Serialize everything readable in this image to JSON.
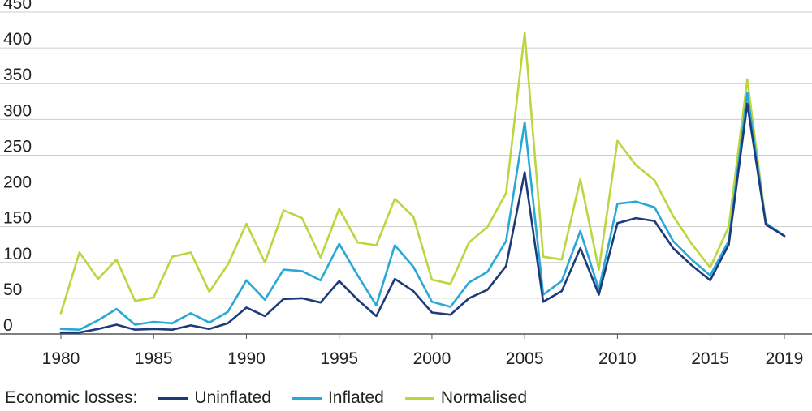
{
  "chart_data": {
    "type": "line",
    "title": "",
    "xlabel": "",
    "ylabel": "",
    "xlim": [
      1980,
      2019
    ],
    "ylim": [
      0,
      450
    ],
    "x_ticks": [
      "1980",
      "1985",
      "1990",
      "1995",
      "2000",
      "2005",
      "2010",
      "2015",
      "2019"
    ],
    "y_ticks": [
      "0",
      "50",
      "100",
      "150",
      "200",
      "250",
      "300",
      "350",
      "400",
      "450"
    ],
    "grid": true,
    "legend_position": "bottom",
    "x": [
      1980,
      1981,
      1982,
      1983,
      1984,
      1985,
      1986,
      1987,
      1988,
      1989,
      1990,
      1991,
      1992,
      1993,
      1994,
      1995,
      1996,
      1997,
      1998,
      1999,
      2000,
      2001,
      2002,
      2003,
      2004,
      2005,
      2006,
      2007,
      2008,
      2009,
      2010,
      2011,
      2012,
      2013,
      2014,
      2015,
      2016,
      2017,
      2018,
      2019
    ],
    "series": [
      {
        "name": "Uninflated",
        "color": "#1f3a7a",
        "values": [
          2,
          2,
          7,
          13,
          6,
          7,
          6,
          12,
          7,
          15,
          37,
          25,
          49,
          50,
          44,
          74,
          48,
          25,
          77,
          60,
          30,
          27,
          50,
          62,
          95,
          226,
          45,
          60,
          120,
          55,
          155,
          162,
          158,
          120,
          96,
          75,
          125,
          322,
          153,
          137
        ]
      },
      {
        "name": "Inflated",
        "color": "#29a8d6",
        "values": [
          7,
          6,
          19,
          35,
          13,
          17,
          15,
          29,
          16,
          31,
          75,
          48,
          90,
          88,
          75,
          126,
          82,
          40,
          124,
          94,
          45,
          38,
          72,
          87,
          130,
          296,
          55,
          74,
          144,
          62,
          182,
          185,
          177,
          130,
          104,
          82,
          130,
          337,
          155,
          137
        ]
      },
      {
        "name": "Normalised",
        "color": "#bcd63f",
        "values": [
          29,
          114,
          77,
          104,
          46,
          51,
          108,
          114,
          59,
          97,
          154,
          100,
          173,
          162,
          107,
          175,
          128,
          124,
          189,
          164,
          76,
          70,
          128,
          150,
          197,
          421,
          108,
          104,
          216,
          90,
          270,
          236,
          215,
          165,
          126,
          93,
          150,
          356,
          155,
          137
        ]
      }
    ]
  },
  "legend": {
    "title": "Economic losses:",
    "items": [
      {
        "label": "Uninflated",
        "color": "#1f3a7a"
      },
      {
        "label": "Inflated",
        "color": "#29a8d6"
      },
      {
        "label": "Normalised",
        "color": "#bcd63f"
      }
    ]
  }
}
